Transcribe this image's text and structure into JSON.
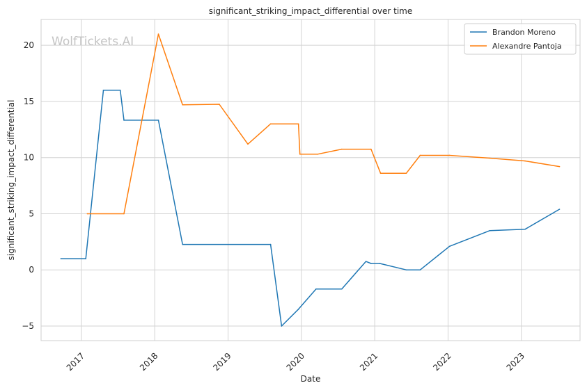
{
  "chart_data": {
    "type": "line",
    "title": "significant_striking_impact_differential over time",
    "xlabel": "Date",
    "ylabel": "significant_striking_impact_differential",
    "watermark": "WolfTickets.AI",
    "xlim": [
      2016.45,
      2023.8
    ],
    "ylim": [
      -6.3,
      22.3
    ],
    "x_ticks": [
      2017,
      2018,
      2019,
      2020,
      2021,
      2022,
      2023
    ],
    "x_tick_labels": [
      "2017",
      "2018",
      "2019",
      "2020",
      "2021",
      "2022",
      "2023"
    ],
    "y_ticks": [
      -5,
      0,
      5,
      10,
      15,
      20
    ],
    "y_tick_labels": [
      "−5",
      "0",
      "5",
      "10",
      "15",
      "20"
    ],
    "grid": true,
    "legend_position": "top-right",
    "series": [
      {
        "name": "Brandon Moreno",
        "color": "#1f77b4",
        "points": [
          {
            "x": 2016.72,
            "y": 1.0
          },
          {
            "x": 2017.06,
            "y": 1.0
          },
          {
            "x": 2017.3,
            "y": 16.0
          },
          {
            "x": 2017.53,
            "y": 16.0
          },
          {
            "x": 2017.58,
            "y": 13.33
          },
          {
            "x": 2018.05,
            "y": 13.33
          },
          {
            "x": 2018.38,
            "y": 2.27
          },
          {
            "x": 2019.58,
            "y": 2.27
          },
          {
            "x": 2019.73,
            "y": -5.0
          },
          {
            "x": 2019.96,
            "y": -3.5
          },
          {
            "x": 2020.2,
            "y": -1.7
          },
          {
            "x": 2020.55,
            "y": -1.7
          },
          {
            "x": 2020.88,
            "y": 0.75
          },
          {
            "x": 2020.95,
            "y": 0.57
          },
          {
            "x": 2021.07,
            "y": 0.57
          },
          {
            "x": 2021.43,
            "y": 0.0
          },
          {
            "x": 2021.62,
            "y": 0.0
          },
          {
            "x": 2022.02,
            "y": 2.1
          },
          {
            "x": 2022.57,
            "y": 3.5
          },
          {
            "x": 2023.05,
            "y": 3.62
          },
          {
            "x": 2023.52,
            "y": 5.4
          }
        ]
      },
      {
        "name": "Alexandre Pantoja",
        "color": "#ff7f0e",
        "points": [
          {
            "x": 2017.08,
            "y": 5.0
          },
          {
            "x": 2017.58,
            "y": 5.0
          },
          {
            "x": 2018.05,
            "y": 21.0
          },
          {
            "x": 2018.38,
            "y": 14.7
          },
          {
            "x": 2018.88,
            "y": 14.75
          },
          {
            "x": 2019.27,
            "y": 11.2
          },
          {
            "x": 2019.58,
            "y": 13.0
          },
          {
            "x": 2019.96,
            "y": 13.0
          },
          {
            "x": 2019.98,
            "y": 10.3
          },
          {
            "x": 2020.22,
            "y": 10.3
          },
          {
            "x": 2020.55,
            "y": 10.75
          },
          {
            "x": 2020.95,
            "y": 10.75
          },
          {
            "x": 2021.08,
            "y": 8.6
          },
          {
            "x": 2021.43,
            "y": 8.6
          },
          {
            "x": 2021.62,
            "y": 10.2
          },
          {
            "x": 2022.02,
            "y": 10.2
          },
          {
            "x": 2022.57,
            "y": 9.95
          },
          {
            "x": 2023.05,
            "y": 9.7
          },
          {
            "x": 2023.52,
            "y": 9.2
          }
        ]
      }
    ]
  }
}
